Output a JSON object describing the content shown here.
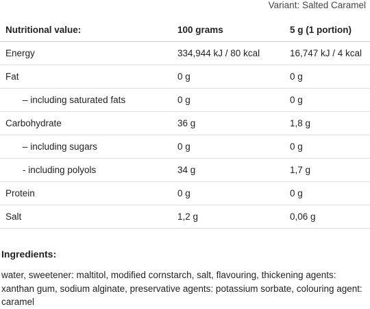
{
  "variant": "Variant: Salted Caramel",
  "table": {
    "header": [
      "Nutritional value:",
      "100 grams",
      "5 g (1 portion)"
    ],
    "rows": [
      [
        "Energy",
        "334,944 kJ / 80 kcal",
        "16,747 kJ / 4 kcal"
      ],
      [
        "Fat",
        "0 g",
        "0 g"
      ],
      [
        "– including saturated fats",
        "0 g",
        "0 g"
      ],
      [
        "Carbohydrate",
        "36 g",
        "1,8 g"
      ],
      [
        "– including sugars",
        "0 g",
        "0 g"
      ],
      [
        "- including polyols",
        "34 g",
        "1,7 g"
      ],
      [
        "Protein",
        "0 g",
        "0 g"
      ],
      [
        "Salt",
        "1,2 g",
        "0,06 g"
      ]
    ]
  },
  "ingredients": {
    "title": "Ingredients:",
    "text": "water, sweetener: maltitol, modified cornstarch, salt, flavouring, thickening agents: xanthan gum, sodium alginate, preservative agents: potassium sorbate, colouring agent: caramel"
  }
}
